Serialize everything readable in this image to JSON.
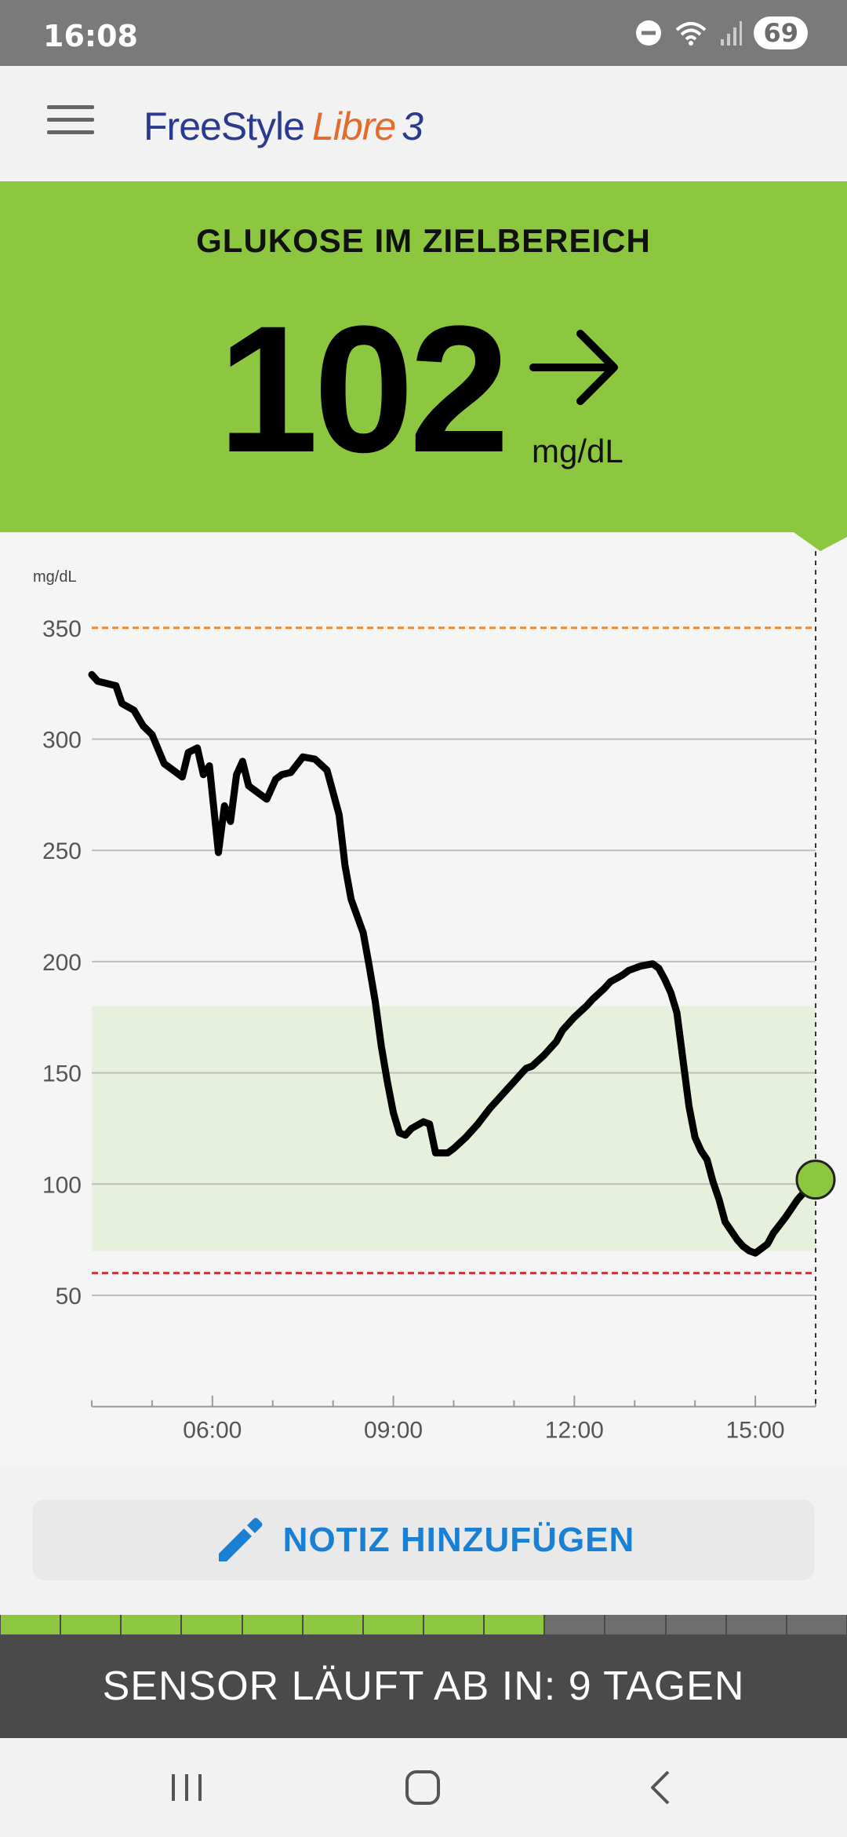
{
  "status_bar": {
    "time": "16:08",
    "battery": "69",
    "icons": [
      "do-not-disturb-icon",
      "wifi-icon",
      "signal-icon",
      "battery-icon"
    ]
  },
  "app_bar": {
    "menu_icon": "hamburger-menu-icon",
    "logo_freestyle": "FreeStyle",
    "logo_libre": "Libre",
    "logo_number": "3"
  },
  "banner": {
    "title": "GLUKOSE IM ZIELBEREICH",
    "value": "102",
    "unit": "mg/dL",
    "trend_icon": "arrow-right-icon",
    "color": "#8dc63f"
  },
  "chart_data": {
    "type": "line",
    "ylabel": "mg/dL",
    "y_ticks": [
      "50",
      "100",
      "150",
      "200",
      "250",
      "300",
      "350"
    ],
    "x_ticks": [
      "06:00",
      "09:00",
      "12:00",
      "15:00"
    ],
    "x_tick_hours": [
      6,
      9,
      12,
      15
    ],
    "xlim": [
      4.0,
      16.0
    ],
    "ylim": [
      0,
      370
    ],
    "target_range": [
      70,
      180
    ],
    "high_alarm": 350,
    "low_alarm": 60,
    "series": [
      {
        "x": [
          4.0,
          4.1,
          4.4,
          4.5,
          4.7,
          4.85,
          5.0,
          5.2,
          5.3,
          5.5,
          5.6,
          5.75,
          5.85,
          5.95,
          6.1,
          6.2,
          6.3,
          6.4,
          6.5,
          6.6,
          6.75,
          6.9,
          7.05,
          7.15,
          7.3,
          7.5,
          7.7,
          7.9,
          8.0,
          8.1,
          8.2,
          8.3,
          8.5,
          8.6,
          8.7,
          8.8,
          8.9,
          9.0,
          9.1,
          9.2,
          9.3,
          9.5,
          9.6,
          9.7,
          9.9,
          10.0,
          10.2,
          10.4,
          10.6,
          10.8,
          11.0,
          11.2,
          11.3,
          11.5,
          11.7,
          11.8,
          12.0,
          12.2,
          12.3,
          12.5,
          12.6,
          12.8,
          12.9,
          13.1,
          13.3,
          13.4,
          13.5,
          13.6,
          13.7,
          13.8,
          13.9,
          14.0,
          14.1,
          14.2,
          14.3,
          14.4,
          14.5,
          14.6,
          14.7,
          14.8,
          14.9,
          15.0,
          15.1,
          15.2,
          15.3,
          15.5,
          15.7,
          16.0
        ],
        "values": [
          329,
          326,
          324,
          316,
          313,
          306,
          302,
          289,
          287,
          283,
          294,
          296,
          284,
          288,
          249,
          270,
          263,
          284,
          290,
          279,
          276,
          273,
          282,
          284,
          285,
          292,
          291,
          286,
          276,
          266,
          243,
          228,
          213,
          198,
          182,
          162,
          146,
          132,
          123,
          122,
          125,
          128,
          127,
          114,
          114,
          116,
          121,
          127,
          134,
          140,
          146,
          152,
          153,
          158,
          164,
          169,
          175,
          180,
          183,
          188,
          191,
          194,
          196,
          198,
          199,
          197,
          192,
          186,
          177,
          156,
          135,
          121,
          115,
          111,
          101,
          93,
          83,
          79,
          75,
          72,
          70,
          69,
          71,
          73,
          78,
          85,
          93,
          102
        ]
      }
    ]
  },
  "note_button": {
    "label": "NOTIZ HINZUFÜGEN",
    "icon": "pencil-icon"
  },
  "sensor": {
    "text": "SENSOR LÄUFT AB IN: 9 TAGEN",
    "days_left": 9,
    "segments_total": 14,
    "segments_active": 9
  },
  "nav_bar": {
    "icons": [
      "recent-apps-icon",
      "home-icon",
      "back-icon"
    ]
  }
}
